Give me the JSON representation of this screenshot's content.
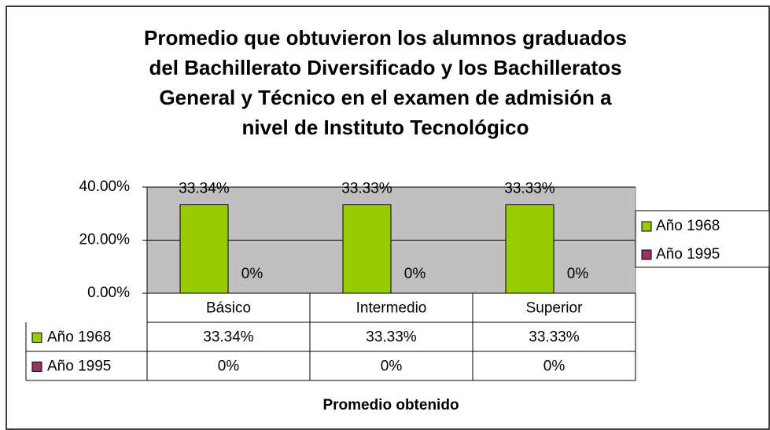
{
  "chart_data": {
    "type": "bar",
    "title": [
      "Promedio que obtuvieron los alumnos graduados",
      "del Bachillerato Diversificado y los Bachilleratos",
      "General y Técnico en el examen de admisión a",
      "nivel de Instituto Tecnológico"
    ],
    "x_label": "Promedio obtenido",
    "categories": [
      "Básico",
      "Intermedio",
      "Superior"
    ],
    "series": [
      {
        "name": "Año 1968",
        "color": "#99cc00",
        "values": [
          33.34,
          33.33,
          33.33
        ],
        "value_labels": [
          "33.34%",
          "33.33%",
          "33.33%"
        ]
      },
      {
        "name": "Año 1995",
        "color": "#993366",
        "values": [
          0,
          0,
          0
        ],
        "value_labels": [
          "0%",
          "0%",
          "0%"
        ]
      }
    ],
    "ylim": [
      0,
      40
    ],
    "yticks": [
      {
        "value": 0,
        "label": "0.00%"
      },
      {
        "value": 20,
        "label": "20.00%"
      },
      {
        "value": 40,
        "label": "40.00%"
      }
    ],
    "grid": true,
    "legend": "right",
    "data_table": true
  }
}
